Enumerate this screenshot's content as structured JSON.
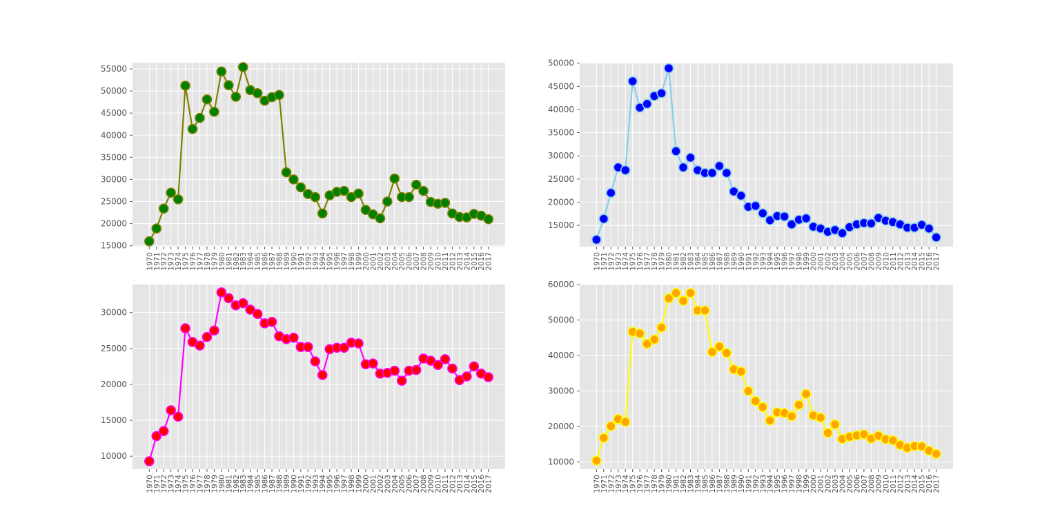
{
  "chart_data": [
    {
      "type": "line",
      "x": [
        "1970",
        "1971",
        "1972",
        "1973",
        "1974",
        "1975",
        "1976",
        "1977",
        "1978",
        "1979",
        "1980",
        "1981",
        "1982",
        "1983",
        "1984",
        "1985",
        "1986",
        "1987",
        "1988",
        "1989",
        "1990",
        "1991",
        "1992",
        "1993",
        "1994",
        "1995",
        "1996",
        "1997",
        "1998",
        "1999",
        "2000",
        "2001",
        "2002",
        "2003",
        "2004",
        "2005",
        "2006",
        "2007",
        "2008",
        "2009",
        "2010",
        "2011",
        "2012",
        "2013",
        "2014",
        "2015",
        "2016",
        "2017"
      ],
      "values": [
        16000,
        18900,
        23400,
        27000,
        25500,
        51200,
        41400,
        43900,
        48100,
        45300,
        54400,
        51300,
        48700,
        55400,
        50200,
        49500,
        47800,
        48600,
        49100,
        31600,
        30000,
        28200,
        26700,
        26000,
        22300,
        26400,
        27200,
        27400,
        26000,
        26800,
        23100,
        22100,
        21200,
        25000,
        30200,
        26000,
        26000,
        28800,
        27400,
        24900,
        24500,
        24700,
        22300,
        21500,
        21400,
        22200,
        21800,
        21000
      ],
      "ylim": [
        14800,
        56400
      ],
      "yticks": [
        15000,
        20000,
        25000,
        30000,
        35000,
        40000,
        45000,
        50000,
        55000
      ],
      "ytick_labels": [
        "15000",
        "20000",
        "25000",
        "30000",
        "35000",
        "40000",
        "45000",
        "50000",
        "55000"
      ],
      "colors": {
        "line": "#808000",
        "marker_fill": "#008000",
        "marker_edge": "#808000"
      },
      "grid": true
    },
    {
      "type": "line",
      "x": [
        "1970",
        "1971",
        "1972",
        "1973",
        "1974",
        "1975",
        "1976",
        "1977",
        "1978",
        "1979",
        "1980",
        "1981",
        "1982",
        "1983",
        "1984",
        "1985",
        "1986",
        "1987",
        "1988",
        "1989",
        "1990",
        "1991",
        "1992",
        "1993",
        "1994",
        "1995",
        "1996",
        "1997",
        "1998",
        "1999",
        "2000",
        "2001",
        "2002",
        "2003",
        "2004",
        "2005",
        "2006",
        "2007",
        "2008",
        "2009",
        "2010",
        "2011",
        "2012",
        "2013",
        "2014",
        "2015",
        "2016",
        "2017"
      ],
      "values": [
        11900,
        16400,
        22000,
        27500,
        26900,
        46100,
        40400,
        41200,
        42900,
        43500,
        48900,
        31000,
        27500,
        29600,
        26900,
        26300,
        26300,
        27800,
        26300,
        22300,
        21400,
        19000,
        19200,
        17600,
        16100,
        17000,
        16900,
        15200,
        16200,
        16500,
        14700,
        14300,
        13600,
        14000,
        13300,
        14600,
        15200,
        15500,
        15400,
        16600,
        16000,
        15700,
        15200,
        14500,
        14500,
        15100,
        14300,
        12400
      ],
      "ylim": [
        10400,
        50100
      ],
      "yticks": [
        15000,
        20000,
        25000,
        30000,
        35000,
        40000,
        45000,
        50000
      ],
      "ytick_labels": [
        "15000",
        "20000",
        "25000",
        "30000",
        "35000",
        "40000",
        "45000",
        "50000"
      ],
      "colors": {
        "line": "#87ceeb",
        "marker_fill": "#0000ff",
        "marker_edge": "#87ceeb"
      },
      "grid": true
    },
    {
      "type": "line",
      "x": [
        "1970",
        "1971",
        "1972",
        "1973",
        "1974",
        "1975",
        "1976",
        "1977",
        "1978",
        "1979",
        "1980",
        "1981",
        "1982",
        "1983",
        "1984",
        "1985",
        "1986",
        "1987",
        "1988",
        "1989",
        "1990",
        "1991",
        "1992",
        "1993",
        "1994",
        "1995",
        "1996",
        "1997",
        "1998",
        "1999",
        "2000",
        "2001",
        "2002",
        "2003",
        "2004",
        "2005",
        "2006",
        "2007",
        "2008",
        "2009",
        "2010",
        "2011",
        "2012",
        "2013",
        "2014",
        "2015",
        "2016",
        "2017"
      ],
      "values": [
        9300,
        12800,
        13500,
        16400,
        15500,
        27800,
        25900,
        25400,
        26600,
        27500,
        32800,
        32000,
        31000,
        31300,
        30400,
        29800,
        28500,
        28700,
        26700,
        26300,
        26500,
        25200,
        25200,
        23200,
        21300,
        24900,
        25100,
        25100,
        25800,
        25700,
        22800,
        22900,
        21500,
        21600,
        21900,
        20500,
        21900,
        22000,
        23600,
        23300,
        22700,
        23500,
        22200,
        20600,
        21100,
        22500,
        21500,
        21000
      ],
      "ylim": [
        8200,
        33900
      ],
      "yticks": [
        10000,
        15000,
        20000,
        25000,
        30000
      ],
      "ytick_labels": [
        "10000",
        "15000",
        "20000",
        "25000",
        "30000"
      ],
      "colors": {
        "line": "#ff00ff",
        "marker_fill": "#ff0000",
        "marker_edge": "#ff00ff"
      },
      "grid": true
    },
    {
      "type": "line",
      "x": [
        "1970",
        "1971",
        "1972",
        "1973",
        "1974",
        "1975",
        "1976",
        "1977",
        "1978",
        "1979",
        "1980",
        "1981",
        "1982",
        "1983",
        "1984",
        "1985",
        "1986",
        "1987",
        "1988",
        "1989",
        "1990",
        "1991",
        "1992",
        "1993",
        "1994",
        "1995",
        "1996",
        "1997",
        "1998",
        "1999",
        "2000",
        "2001",
        "2002",
        "2003",
        "2004",
        "2005",
        "2006",
        "2007",
        "2008",
        "2009",
        "2010",
        "2011",
        "2012",
        "2013",
        "2014",
        "2015",
        "2016",
        "2017"
      ],
      "values": [
        10400,
        16800,
        20100,
        22100,
        21300,
        46700,
        46200,
        43300,
        44500,
        47900,
        56100,
        57600,
        55400,
        57600,
        52700,
        52700,
        41000,
        42500,
        40700,
        36100,
        35500,
        30000,
        27200,
        25500,
        21700,
        24000,
        23800,
        22900,
        26100,
        29200,
        23100,
        22500,
        18200,
        20600,
        16500,
        17100,
        17500,
        17800,
        16600,
        17400,
        16400,
        16100,
        14800,
        14000,
        14500,
        14400,
        13200,
        12300
      ],
      "ylim": [
        8000,
        60000
      ],
      "yticks": [
        10000,
        20000,
        30000,
        40000,
        50000,
        60000
      ],
      "ytick_labels": [
        "10000",
        "20000",
        "30000",
        "40000",
        "50000",
        "60000"
      ],
      "colors": {
        "line": "#ffff00",
        "marker_fill": "#ffa500",
        "marker_edge": "#ffff00"
      },
      "grid": true
    }
  ]
}
